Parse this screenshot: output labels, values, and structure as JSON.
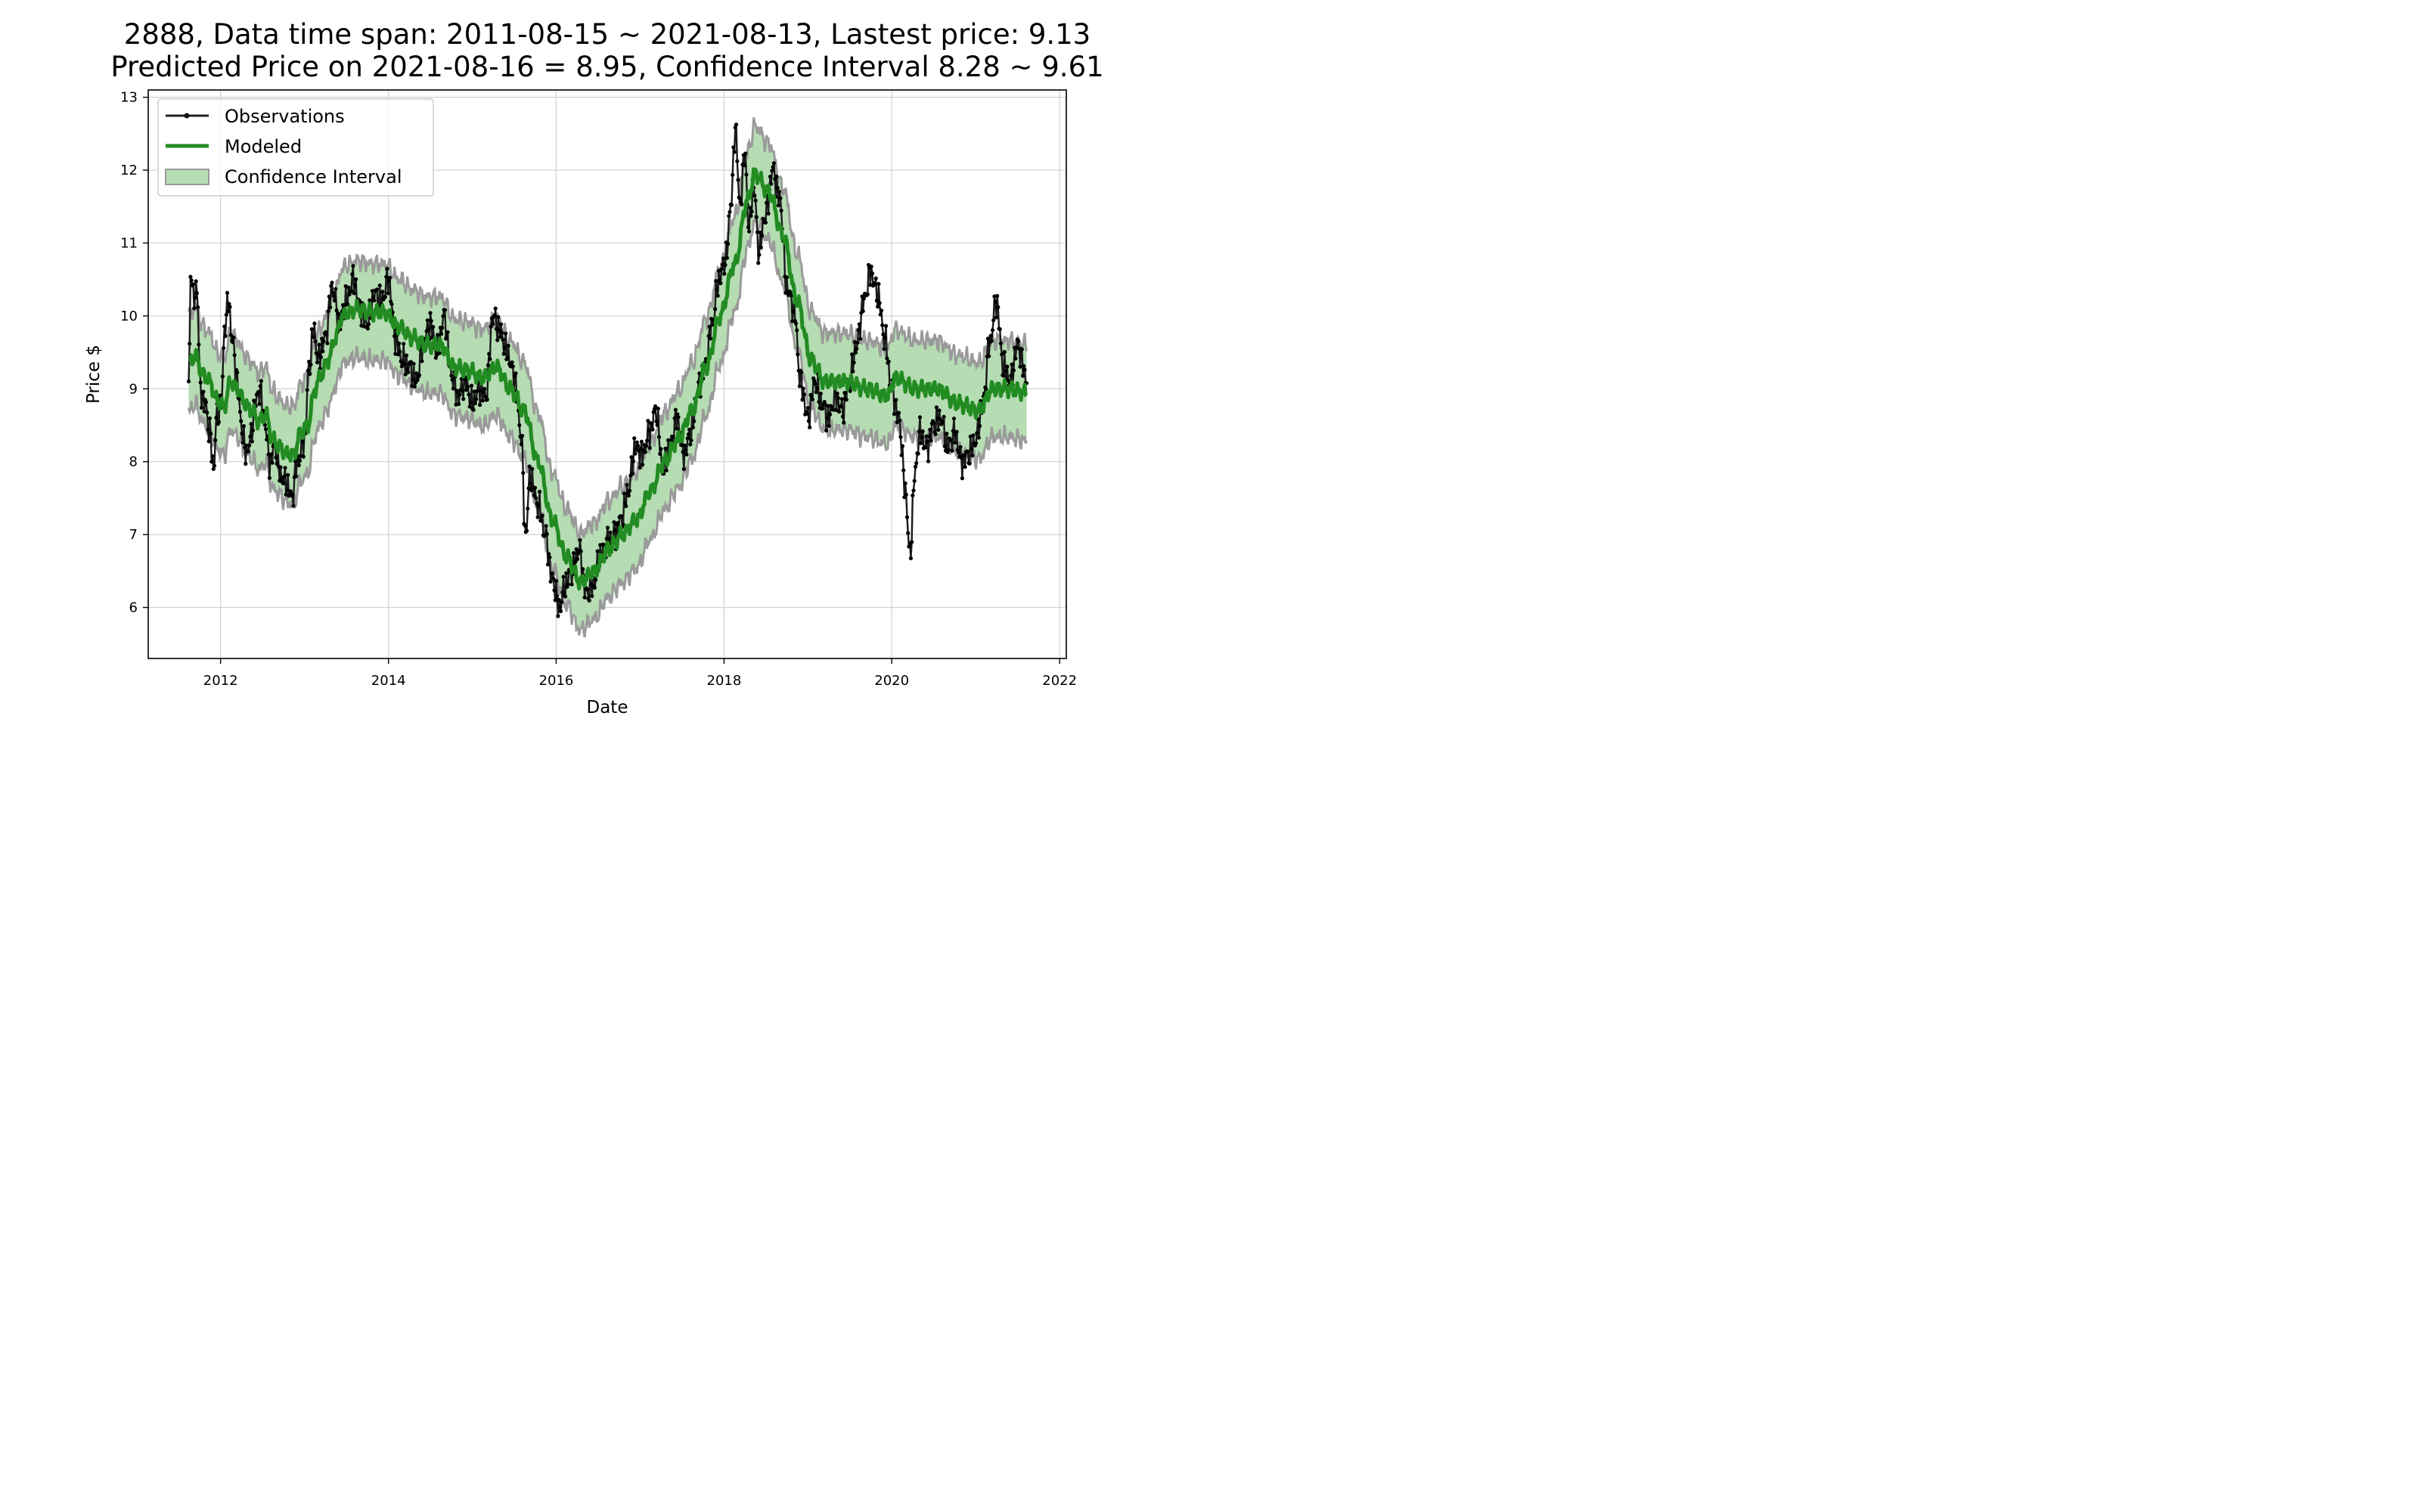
{
  "chart_data": {
    "type": "line",
    "title": [
      "2888, Data time span: 2011-08-15 ~ 2021-08-13, Lastest price: 9.13",
      "Predicted Price on 2021-08-16 = 8.95, Confidence Interval 8.28 ~ 9.61"
    ],
    "xlabel": "Date",
    "ylabel": "Price $",
    "x_ticks": [
      "2012",
      "2014",
      "2016",
      "2018",
      "2020",
      "2022"
    ],
    "y_ticks": [
      "6",
      "7",
      "8",
      "9",
      "10",
      "11",
      "12",
      "13"
    ],
    "xlim": [
      "2011-02-20",
      "2022-01-30"
    ],
    "ylim": [
      5.3,
      13.1
    ],
    "grid": true,
    "legend": {
      "position": "top-left",
      "entries": [
        "Observations",
        "Modeled",
        "Confidence Interval"
      ]
    },
    "colors": {
      "observations": "#000000",
      "modeled": "#228b22",
      "interval_fill": "#b5dcb2",
      "interval_edge": "#9a9a9a",
      "grid": "#d0d0d0"
    },
    "modeled_anchor_points": [
      [
        "2011-08-15",
        9.35
      ],
      [
        "2011-09-15",
        9.45
      ],
      [
        "2011-10-15",
        9.2
      ],
      [
        "2011-11-15",
        9.1
      ],
      [
        "2011-12-15",
        8.85
      ],
      [
        "2012-01-15",
        8.75
      ],
      [
        "2012-02-15",
        9.1
      ],
      [
        "2012-03-15",
        9.0
      ],
      [
        "2012-04-15",
        8.8
      ],
      [
        "2012-05-15",
        8.7
      ],
      [
        "2012-06-15",
        8.55
      ],
      [
        "2012-07-15",
        8.65
      ],
      [
        "2012-08-15",
        8.3
      ],
      [
        "2012-09-15",
        8.2
      ],
      [
        "2012-10-15",
        8.1
      ],
      [
        "2012-11-15",
        8.1
      ],
      [
        "2012-12-15",
        8.4
      ],
      [
        "2013-01-15",
        8.5
      ],
      [
        "2013-02-15",
        9.0
      ],
      [
        "2013-03-15",
        9.2
      ],
      [
        "2013-04-15",
        9.4
      ],
      [
        "2013-05-15",
        9.7
      ],
      [
        "2013-06-15",
        10.0
      ],
      [
        "2013-07-15",
        10.05
      ],
      [
        "2013-08-15",
        10.1
      ],
      [
        "2013-10-15",
        10.05
      ],
      [
        "2013-12-15",
        10.05
      ],
      [
        "2014-02-15",
        9.85
      ],
      [
        "2014-04-15",
        9.7
      ],
      [
        "2014-06-15",
        9.6
      ],
      [
        "2014-08-15",
        9.6
      ],
      [
        "2014-10-15",
        9.3
      ],
      [
        "2014-12-15",
        9.25
      ],
      [
        "2015-02-15",
        9.15
      ],
      [
        "2015-04-15",
        9.3
      ],
      [
        "2015-06-15",
        9.0
      ],
      [
        "2015-08-15",
        8.7
      ],
      [
        "2015-10-15",
        8.0
      ],
      [
        "2015-12-15",
        7.2
      ],
      [
        "2016-02-15",
        6.7
      ],
      [
        "2016-04-15",
        6.35
      ],
      [
        "2016-06-15",
        6.5
      ],
      [
        "2016-08-15",
        6.8
      ],
      [
        "2016-10-15",
        7.0
      ],
      [
        "2016-12-15",
        7.2
      ],
      [
        "2017-02-15",
        7.6
      ],
      [
        "2017-04-15",
        8.0
      ],
      [
        "2017-06-15",
        8.3
      ],
      [
        "2017-08-15",
        8.7
      ],
      [
        "2017-10-15",
        9.3
      ],
      [
        "2017-12-15",
        10.0
      ],
      [
        "2018-02-15",
        10.7
      ],
      [
        "2018-04-15",
        11.6
      ],
      [
        "2018-05-15",
        11.95
      ],
      [
        "2018-07-15",
        11.7
      ],
      [
        "2018-09-15",
        11.1
      ],
      [
        "2018-11-15",
        10.2
      ],
      [
        "2019-01-15",
        9.4
      ],
      [
        "2019-03-15",
        9.1
      ],
      [
        "2019-06-15",
        9.1
      ],
      [
        "2019-09-15",
        9.0
      ],
      [
        "2019-12-15",
        8.9
      ],
      [
        "2020-01-15",
        9.15
      ],
      [
        "2020-04-15",
        9.0
      ],
      [
        "2020-07-15",
        9.0
      ],
      [
        "2020-10-15",
        8.8
      ],
      [
        "2021-01-15",
        8.7
      ],
      [
        "2021-03-15",
        9.0
      ],
      [
        "2021-05-15",
        9.0
      ],
      [
        "2021-08-13",
        8.95
      ]
    ],
    "interval_halfwidth": 0.66,
    "observation_anchor_points": [
      [
        "2011-08-15",
        9.0
      ],
      [
        "2011-08-25",
        10.7
      ],
      [
        "2011-09-05",
        10.2
      ],
      [
        "2011-09-20",
        10.4
      ],
      [
        "2011-10-05",
        9.0
      ],
      [
        "2011-10-25",
        8.8
      ],
      [
        "2011-11-15",
        8.4
      ],
      [
        "2011-12-01",
        7.9
      ],
      [
        "2011-12-15",
        8.6
      ],
      [
        "2012-01-05",
        8.8
      ],
      [
        "2012-01-20",
        9.9
      ],
      [
        "2012-02-05",
        10.2
      ],
      [
        "2012-02-20",
        9.7
      ],
      [
        "2012-03-10",
        9.2
      ],
      [
        "2012-04-01",
        8.5
      ],
      [
        "2012-04-20",
        8.1
      ],
      [
        "2012-05-10",
        8.3
      ],
      [
        "2012-06-01",
        8.8
      ],
      [
        "2012-06-20",
        9.0
      ],
      [
        "2012-07-10",
        8.6
      ],
      [
        "2012-08-01",
        8.0
      ],
      [
        "2012-08-25",
        8.2
      ],
      [
        "2012-09-20",
        7.8
      ],
      [
        "2012-10-15",
        7.7
      ],
      [
        "2012-11-05",
        7.5
      ],
      [
        "2012-12-01",
        8.0
      ],
      [
        "2013-01-01",
        8.3
      ],
      [
        "2013-01-20",
        9.3
      ],
      [
        "2013-02-10",
        9.8
      ],
      [
        "2013-03-01",
        9.4
      ],
      [
        "2013-04-01",
        9.7
      ],
      [
        "2013-05-01",
        10.4
      ],
      [
        "2013-06-01",
        9.9
      ],
      [
        "2013-07-01",
        10.2
      ],
      [
        "2013-08-01",
        10.5
      ],
      [
        "2013-09-01",
        10.1
      ],
      [
        "2013-10-01",
        9.9
      ],
      [
        "2013-11-01",
        10.3
      ],
      [
        "2013-12-01",
        10.2
      ],
      [
        "2014-01-01",
        10.5
      ],
      [
        "2014-02-01",
        9.7
      ],
      [
        "2014-03-01",
        9.4
      ],
      [
        "2014-04-01",
        9.3
      ],
      [
        "2014-05-01",
        9.1
      ],
      [
        "2014-06-01",
        9.6
      ],
      [
        "2014-07-01",
        9.9
      ],
      [
        "2014-08-01",
        9.5
      ],
      [
        "2014-09-01",
        10.0
      ],
      [
        "2014-10-01",
        9.2
      ],
      [
        "2014-11-01",
        8.9
      ],
      [
        "2014-12-01",
        9.1
      ],
      [
        "2015-01-01",
        8.8
      ],
      [
        "2015-02-01",
        9.0
      ],
      [
        "2015-03-01",
        8.9
      ],
      [
        "2015-04-01",
        10.0
      ],
      [
        "2015-05-01",
        9.8
      ],
      [
        "2015-06-01",
        9.5
      ],
      [
        "2015-07-01",
        9.2
      ],
      [
        "2015-08-01",
        8.4
      ],
      [
        "2015-08-20",
        7.0
      ],
      [
        "2015-09-10",
        7.8
      ],
      [
        "2015-10-15",
        7.4
      ],
      [
        "2015-11-15",
        7.0
      ],
      [
        "2015-12-15",
        6.4
      ],
      [
        "2016-01-15",
        6.0
      ],
      [
        "2016-02-10",
        6.3
      ],
      [
        "2016-03-10",
        6.5
      ],
      [
        "2016-04-10",
        6.8
      ],
      [
        "2016-05-10",
        6.2
      ],
      [
        "2016-06-10",
        6.3
      ],
      [
        "2016-07-10",
        6.7
      ],
      [
        "2016-08-10",
        6.9
      ],
      [
        "2016-09-10",
        7.0
      ],
      [
        "2016-10-10",
        7.2
      ],
      [
        "2016-11-10",
        7.6
      ],
      [
        "2016-12-10",
        8.2
      ],
      [
        "2017-01-10",
        8.1
      ],
      [
        "2017-02-10",
        8.4
      ],
      [
        "2017-03-10",
        8.7
      ],
      [
        "2017-04-10",
        7.9
      ],
      [
        "2017-05-10",
        8.2
      ],
      [
        "2017-06-10",
        8.6
      ],
      [
        "2017-07-10",
        8.1
      ],
      [
        "2017-08-10",
        8.4
      ],
      [
        "2017-09-10",
        9.0
      ],
      [
        "2017-10-10",
        9.3
      ],
      [
        "2017-11-10",
        9.9
      ],
      [
        "2017-12-10",
        10.5
      ],
      [
        "2018-01-10",
        10.8
      ],
      [
        "2018-02-01",
        11.6
      ],
      [
        "2018-02-20",
        12.6
      ],
      [
        "2018-03-10",
        11.5
      ],
      [
        "2018-04-01",
        12.2
      ],
      [
        "2018-04-20",
        11.2
      ],
      [
        "2018-05-10",
        11.8
      ],
      [
        "2018-06-01",
        10.9
      ],
      [
        "2018-07-01",
        11.4
      ],
      [
        "2018-08-01",
        12.0
      ],
      [
        "2018-09-01",
        11.6
      ],
      [
        "2018-10-01",
        10.4
      ],
      [
        "2018-11-01",
        10.1
      ],
      [
        "2018-12-01",
        9.1
      ],
      [
        "2019-01-01",
        8.6
      ],
      [
        "2019-02-01",
        9.1
      ],
      [
        "2019-03-01",
        8.8
      ],
      [
        "2019-04-01",
        8.6
      ],
      [
        "2019-05-01",
        8.9
      ],
      [
        "2019-06-01",
        8.7
      ],
      [
        "2019-07-01",
        9.1
      ],
      [
        "2019-08-01",
        9.6
      ],
      [
        "2019-09-01",
        10.2
      ],
      [
        "2019-10-01",
        10.6
      ],
      [
        "2019-11-01",
        10.3
      ],
      [
        "2019-12-01",
        9.7
      ],
      [
        "2020-01-01",
        9.0
      ],
      [
        "2020-02-01",
        8.6
      ],
      [
        "2020-03-01",
        7.6
      ],
      [
        "2020-03-20",
        6.7
      ],
      [
        "2020-04-10",
        7.8
      ],
      [
        "2020-05-01",
        8.4
      ],
      [
        "2020-06-01",
        8.2
      ],
      [
        "2020-07-01",
        8.5
      ],
      [
        "2020-08-01",
        8.6
      ],
      [
        "2020-09-01",
        8.2
      ],
      [
        "2020-10-01",
        8.4
      ],
      [
        "2020-11-01",
        8.0
      ],
      [
        "2020-12-01",
        8.1
      ],
      [
        "2021-01-01",
        8.3
      ],
      [
        "2021-02-01",
        8.8
      ],
      [
        "2021-03-01",
        9.6
      ],
      [
        "2021-04-01",
        10.2
      ],
      [
        "2021-05-01",
        9.3
      ],
      [
        "2021-06-01",
        9.1
      ],
      [
        "2021-07-01",
        9.6
      ],
      [
        "2021-08-13",
        9.13
      ]
    ]
  }
}
